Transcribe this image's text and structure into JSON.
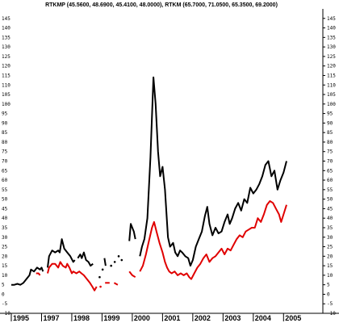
{
  "chart_data": {
    "type": "line",
    "title": "RTKMP (45.5600, 48.6900, 45.4100, 48.0000), RTKM (65.7000, 71.0500, 65.3500, 69.2000)",
    "xlabel": "",
    "ylabel": "",
    "xlim": [
      1995.0,
      2005.3
    ],
    "ylim": [
      -10,
      150
    ],
    "y_ticks": [
      -10,
      -5,
      0,
      5,
      10,
      15,
      20,
      25,
      30,
      35,
      40,
      45,
      50,
      55,
      60,
      65,
      70,
      75,
      80,
      85,
      90,
      95,
      100,
      105,
      110,
      115,
      120,
      125,
      130,
      135,
      140,
      145
    ],
    "y_tick_labels": [
      "-10",
      "-5",
      "0",
      "5",
      "10",
      "15",
      "20",
      "25",
      "30",
      "35",
      "40",
      "45",
      "50",
      "55",
      "60",
      "65",
      "70",
      "75",
      "80",
      "85",
      "90",
      "95",
      "100",
      "105",
      "110",
      "115",
      "120",
      "125",
      "130",
      "135",
      "140",
      "145"
    ],
    "x_tick_labels": [
      {
        "x": 1995.0,
        "label": "1995"
      },
      {
        "x": 1996.0,
        "label": "1997"
      },
      {
        "x": 1997.0,
        "label": "1998"
      },
      {
        "x": 1998.0,
        "label": "1999"
      },
      {
        "x": 1999.0,
        "label": "2000"
      },
      {
        "x": 2000.0,
        "label": "2001"
      },
      {
        "x": 2001.0,
        "label": "2002"
      },
      {
        "x": 2002.0,
        "label": "2003"
      },
      {
        "x": 2003.0,
        "label": "2004"
      },
      {
        "x": 2004.0,
        "label": "2005"
      }
    ],
    "grid": false,
    "legend": "none",
    "series": [
      {
        "name": "RTKM",
        "color": "#000000",
        "segments": [
          [
            [
              1995.0,
              5
            ],
            [
              1995.1,
              5
            ],
            [
              1995.2,
              5.5
            ],
            [
              1995.3,
              5
            ],
            [
              1995.4,
              6
            ],
            [
              1995.5,
              8
            ],
            [
              1995.6,
              10
            ],
            [
              1995.65,
              13
            ],
            [
              1995.75,
              12
            ],
            [
              1995.85,
              14
            ],
            [
              1995.95,
              13
            ],
            [
              1996.0,
              14
            ],
            [
              1996.05,
              12
            ]
          ],
          [
            [
              1996.2,
              14
            ],
            [
              1996.25,
              20
            ],
            [
              1996.35,
              23
            ],
            [
              1996.45,
              22
            ],
            [
              1996.55,
              23
            ],
            [
              1996.6,
              22
            ],
            [
              1996.67,
              29
            ],
            [
              1996.75,
              24
            ],
            [
              1996.85,
              22
            ],
            [
              1996.95,
              20
            ],
            [
              1997.05,
              17
            ],
            [
              1997.1,
              18
            ]
          ],
          [
            [
              1997.2,
              19
            ],
            [
              1997.28,
              21
            ],
            [
              1997.33,
              19
            ],
            [
              1997.4,
              22
            ],
            [
              1997.47,
              18
            ],
            [
              1997.55,
              17
            ],
            [
              1997.62,
              15
            ],
            [
              1997.7,
              16
            ]
          ],
          [
            [
              1997.92,
              9
            ]
          ],
          [
            [
              1998.02,
              13
            ]
          ],
          [
            [
              1998.08,
              19
            ],
            [
              1998.12,
              15
            ]
          ],
          [
            [
              1998.3,
              15
            ]
          ],
          [
            [
              1998.42,
              17
            ]
          ],
          [
            [
              1998.55,
              20
            ]
          ],
          [
            [
              1998.65,
              18
            ]
          ],
          [
            [
              1998.9,
              28
            ],
            [
              1998.95,
              37
            ],
            [
              1999.05,
              33
            ],
            [
              1999.1,
              29
            ]
          ],
          [
            [
              1999.25,
              20
            ],
            [
              1999.32,
              25
            ],
            [
              1999.4,
              29
            ],
            [
              1999.5,
              40
            ],
            [
              1999.6,
              72
            ],
            [
              1999.7,
              114
            ],
            [
              1999.77,
              100
            ],
            [
              1999.85,
              75
            ],
            [
              1999.92,
              62
            ],
            [
              2000.0,
              67
            ],
            [
              2000.08,
              55
            ],
            [
              2000.18,
              30
            ],
            [
              2000.25,
              25
            ],
            [
              2000.35,
              27
            ],
            [
              2000.42,
              22
            ],
            [
              2000.5,
              20
            ],
            [
              2000.58,
              23
            ],
            [
              2000.65,
              22
            ],
            [
              2000.75,
              20
            ],
            [
              2000.85,
              19
            ],
            [
              2000.92,
              15
            ],
            [
              2001.0,
              18
            ],
            [
              2001.1,
              25
            ],
            [
              2001.2,
              29
            ],
            [
              2001.3,
              33
            ],
            [
              2001.4,
              41
            ],
            [
              2001.48,
              46
            ],
            [
              2001.55,
              37
            ],
            [
              2001.65,
              31
            ],
            [
              2001.75,
              35
            ],
            [
              2001.85,
              32
            ],
            [
              2001.95,
              33
            ],
            [
              2002.05,
              38
            ],
            [
              2002.15,
              42
            ],
            [
              2002.22,
              37
            ],
            [
              2002.3,
              40
            ],
            [
              2002.4,
              45
            ],
            [
              2002.5,
              48
            ],
            [
              2002.6,
              44
            ],
            [
              2002.7,
              50
            ],
            [
              2002.8,
              48
            ],
            [
              2002.9,
              56
            ],
            [
              2003.0,
              53
            ],
            [
              2003.1,
              55
            ],
            [
              2003.2,
              58
            ],
            [
              2003.3,
              62
            ],
            [
              2003.4,
              68
            ],
            [
              2003.5,
              70
            ],
            [
              2003.6,
              62
            ],
            [
              2003.7,
              65
            ],
            [
              2003.8,
              55
            ],
            [
              2003.9,
              60
            ],
            [
              2004.0,
              64
            ],
            [
              2004.1,
              70
            ]
          ]
        ]
      },
      {
        "name": "RTKMP",
        "color": "#e00000",
        "segments": [
          [
            [
              1995.82,
              11
            ],
            [
              1995.9,
              11
            ],
            [
              1995.95,
              10
            ]
          ],
          [
            [
              1996.2,
              11
            ],
            [
              1996.25,
              14
            ],
            [
              1996.35,
              16
            ],
            [
              1996.45,
              16
            ],
            [
              1996.55,
              14
            ],
            [
              1996.62,
              17
            ],
            [
              1996.7,
              15
            ],
            [
              1996.8,
              14
            ],
            [
              1996.85,
              16
            ],
            [
              1996.92,
              14
            ],
            [
              1997.0,
              11
            ],
            [
              1997.05,
              12
            ],
            [
              1997.15,
              11
            ],
            [
              1997.25,
              12
            ],
            [
              1997.32,
              11
            ],
            [
              1997.4,
              10
            ],
            [
              1997.5,
              8
            ],
            [
              1997.6,
              6
            ],
            [
              1997.68,
              4
            ],
            [
              1997.75,
              2
            ],
            [
              1997.82,
              4
            ]
          ],
          [
            [
              1997.95,
              4
            ]
          ],
          [
            [
              1998.1,
              6
            ],
            [
              1998.25,
              6
            ]
          ],
          [
            [
              1998.4,
              6
            ],
            [
              1998.52,
              5
            ]
          ],
          [
            [
              1998.9,
              12
            ],
            [
              1999.0,
              10
            ],
            [
              1999.1,
              9
            ]
          ],
          [
            [
              1999.25,
              12
            ],
            [
              1999.35,
              15
            ],
            [
              1999.45,
              21
            ],
            [
              1999.55,
              28
            ],
            [
              1999.65,
              35
            ],
            [
              1999.72,
              38
            ],
            [
              1999.8,
              33
            ],
            [
              1999.9,
              27
            ],
            [
              2000.0,
              22
            ],
            [
              2000.08,
              17
            ],
            [
              2000.15,
              14
            ],
            [
              2000.22,
              12
            ],
            [
              2000.3,
              11
            ],
            [
              2000.4,
              12
            ],
            [
              2000.5,
              10
            ],
            [
              2000.6,
              11
            ],
            [
              2000.7,
              10
            ],
            [
              2000.8,
              11
            ],
            [
              2000.88,
              9
            ],
            [
              2000.95,
              8
            ],
            [
              2001.05,
              11
            ],
            [
              2001.15,
              14
            ],
            [
              2001.25,
              16
            ],
            [
              2001.35,
              19
            ],
            [
              2001.45,
              21
            ],
            [
              2001.55,
              17
            ],
            [
              2001.65,
              19
            ],
            [
              2001.75,
              20
            ],
            [
              2001.85,
              22
            ],
            [
              2001.95,
              24
            ],
            [
              2002.05,
              21
            ],
            [
              2002.15,
              24
            ],
            [
              2002.25,
              23
            ],
            [
              2002.35,
              26
            ],
            [
              2002.45,
              29
            ],
            [
              2002.55,
              31
            ],
            [
              2002.65,
              30
            ],
            [
              2002.75,
              33
            ],
            [
              2002.85,
              34
            ],
            [
              2002.95,
              35
            ],
            [
              2003.05,
              35
            ],
            [
              2003.15,
              40
            ],
            [
              2003.25,
              38
            ],
            [
              2003.35,
              42
            ],
            [
              2003.45,
              47
            ],
            [
              2003.55,
              49
            ],
            [
              2003.65,
              48
            ],
            [
              2003.75,
              45
            ],
            [
              2003.85,
              42
            ],
            [
              2003.92,
              38
            ],
            [
              2004.0,
              42
            ],
            [
              2004.1,
              47
            ]
          ]
        ]
      }
    ]
  }
}
